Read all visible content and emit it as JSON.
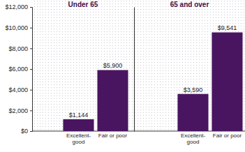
{
  "chart_data": [
    {
      "type": "bar",
      "title": "Under 65",
      "categories": [
        "Excellent-good",
        "Fair or poor"
      ],
      "values": [
        1144,
        5900
      ],
      "value_labels": [
        "$1,144",
        "$5,900"
      ],
      "data_labels": true,
      "color": "#4a1560",
      "ylim": [
        0,
        12000
      ],
      "yticks": [
        {
          "value": 0,
          "label": "$0"
        },
        {
          "value": 2000,
          "label": "$2,000"
        },
        {
          "value": 4000,
          "label": "$4,000"
        },
        {
          "value": 6000,
          "label": "$6,000"
        },
        {
          "value": 8000,
          "label": "$8,000"
        },
        {
          "value": 10000,
          "label": "$10,000"
        },
        {
          "value": 12000,
          "label": "$12,000"
        }
      ]
    },
    {
      "type": "bar",
      "title": "65 and over",
      "categories": [
        "Excellent-good",
        "Fair or poor"
      ],
      "values": [
        3590,
        9541
      ],
      "value_labels": [
        "$3,590",
        "$9,541"
      ],
      "data_labels": true,
      "color": "#4a1560",
      "ylim": [
        0,
        12000
      ],
      "tick_labels": "x"
    }
  ]
}
